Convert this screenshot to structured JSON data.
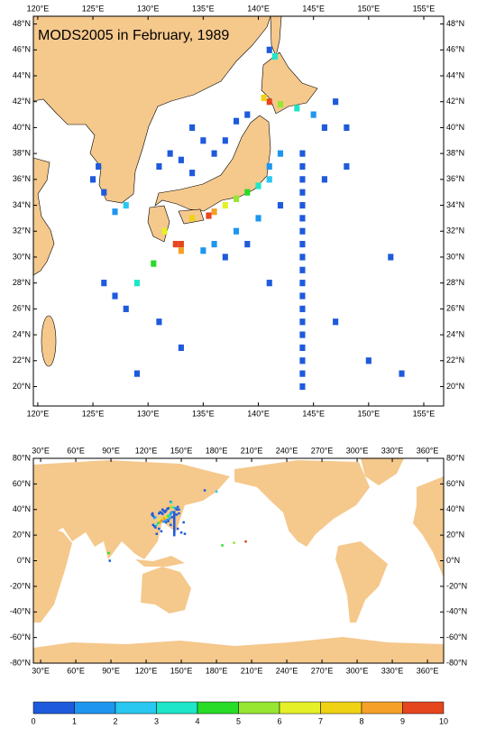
{
  "title": "MODS2005 in February, 1989",
  "top_map": {
    "lonlim": [
      119.6,
      156.8
    ],
    "latlim": [
      18.5,
      48.6
    ],
    "lon_ticks": [
      {
        "value": 120,
        "label": "120°E"
      },
      {
        "value": 125,
        "label": "125°E"
      },
      {
        "value": 130,
        "label": "130°E"
      },
      {
        "value": 135,
        "label": "135°E"
      },
      {
        "value": 140,
        "label": "140°E"
      },
      {
        "value": 145,
        "label": "145°E"
      },
      {
        "value": 150,
        "label": "150°E"
      },
      {
        "value": 155,
        "label": "155°E"
      }
    ],
    "lat_ticks": [
      {
        "value": 20,
        "label": "20°N"
      },
      {
        "value": 22,
        "label": "22°N"
      },
      {
        "value": 24,
        "label": "24°N"
      },
      {
        "value": 26,
        "label": "26°N"
      },
      {
        "value": 28,
        "label": "28°N"
      },
      {
        "value": 30,
        "label": "30°N"
      },
      {
        "value": 32,
        "label": "32°N"
      },
      {
        "value": 34,
        "label": "34°N"
      },
      {
        "value": 36,
        "label": "36°N"
      },
      {
        "value": 38,
        "label": "38°N"
      },
      {
        "value": 40,
        "label": "40°N"
      },
      {
        "value": 42,
        "label": "42°N"
      },
      {
        "value": 44,
        "label": "44°N"
      },
      {
        "value": 46,
        "label": "46°N"
      },
      {
        "value": 48,
        "label": "48°N"
      }
    ]
  },
  "bottom_map": {
    "lonlim": [
      23.8,
      373.8
    ],
    "latlim": [
      -80,
      80
    ],
    "lon_ticks": [
      {
        "value": 30,
        "label": "30°E"
      },
      {
        "value": 60,
        "label": "60°E"
      },
      {
        "value": 90,
        "label": "90°E"
      },
      {
        "value": 120,
        "label": "120°E"
      },
      {
        "value": 150,
        "label": "150°E"
      },
      {
        "value": 180,
        "label": "180°E"
      },
      {
        "value": 210,
        "label": "210°E"
      },
      {
        "value": 240,
        "label": "240°E"
      },
      {
        "value": 270,
        "label": "270°E"
      },
      {
        "value": 300,
        "label": "300°E"
      },
      {
        "value": 330,
        "label": "330°E"
      },
      {
        "value": 360,
        "label": "360°E"
      }
    ],
    "lat_ticks": [
      {
        "value": -80,
        "label": "-80°N"
      },
      {
        "value": -60,
        "label": "-60°N"
      },
      {
        "value": -40,
        "label": "-40°N"
      },
      {
        "value": -20,
        "label": "-20°N"
      },
      {
        "value": 0,
        "label": "0°N"
      },
      {
        "value": 20,
        "label": "20°N"
      },
      {
        "value": 40,
        "label": "40°N"
      },
      {
        "value": 60,
        "label": "60°N"
      },
      {
        "value": 80,
        "label": "80°N"
      }
    ]
  },
  "colorbar": {
    "bounds": [
      0,
      1,
      2,
      3,
      4,
      5,
      6,
      7,
      8,
      9,
      10
    ],
    "colors": [
      "#1e5adc",
      "#1e96f0",
      "#28c8f0",
      "#1ee6c8",
      "#28dc28",
      "#96e632",
      "#e6f028",
      "#f0d214",
      "#f5a028",
      "#e6461e"
    ]
  },
  "cells": {
    "lon": [
      144,
      144,
      144,
      144,
      144,
      144,
      144,
      144,
      144,
      144,
      144,
      144,
      144,
      144,
      144,
      144,
      144,
      144,
      144,
      135.5,
      136,
      134,
      137,
      138,
      139,
      140,
      133,
      132.5,
      133,
      131.5,
      130.5,
      129,
      141,
      141,
      142,
      141,
      140.5,
      142,
      143.5,
      145,
      128,
      127,
      126,
      125,
      125.5,
      131,
      132,
      133,
      134,
      135,
      137,
      138,
      139,
      136,
      134,
      146,
      147,
      148,
      138,
      139,
      137,
      136,
      135,
      140,
      142,
      146,
      148,
      126,
      127,
      128,
      131,
      133,
      141,
      150,
      153,
      147,
      129,
      152,
      141,
      141.5,
      185,
      195,
      205,
      170,
      180,
      88,
      89
    ],
    "lat": [
      20,
      21,
      22,
      23,
      24,
      25,
      26,
      27,
      28,
      29,
      30,
      31,
      32,
      33,
      34,
      35,
      36,
      37,
      38,
      33.2,
      33.5,
      33,
      34,
      34.5,
      35,
      35.5,
      31,
      31,
      30.5,
      32,
      29.5,
      28,
      36,
      37,
      38,
      42,
      42.3,
      41.8,
      41.5,
      41,
      34,
      33.5,
      35,
      36,
      37,
      37,
      38,
      37.5,
      36.5,
      39,
      39,
      40.5,
      41,
      38,
      40,
      40,
      42,
      40,
      32,
      31,
      30,
      31,
      30.5,
      33,
      34,
      36,
      37,
      28,
      27,
      26,
      25,
      23,
      28,
      22,
      21,
      25,
      21,
      30,
      46,
      45.5,
      12,
      14,
      15,
      55,
      54,
      6,
      0
    ],
    "value": [
      0.5,
      0.5,
      0.5,
      0.5,
      0.5,
      0.5,
      0.5,
      0.5,
      0.5,
      0.5,
      0.5,
      0.5,
      0.5,
      0.5,
      0.5,
      0.5,
      0.5,
      0.5,
      0.5,
      9.5,
      8.6,
      7.5,
      6.5,
      5.5,
      4.5,
      3.5,
      9.2,
      9.5,
      8.3,
      6.2,
      4.3,
      3.2,
      2.5,
      1.5,
      1.2,
      9.4,
      7.6,
      5.4,
      3.6,
      1.5,
      2.1,
      1.3,
      0.8,
      0.6,
      0.7,
      0.6,
      0.5,
      0.6,
      0.7,
      0.5,
      0.6,
      0.5,
      0.5,
      0.5,
      0.5,
      0.6,
      0.7,
      0.5,
      1.4,
      0.8,
      0.9,
      1.8,
      1.1,
      1.6,
      0.9,
      0.5,
      0.5,
      0.6,
      0.7,
      0.5,
      0.6,
      0.5,
      0.5,
      0.5,
      0.5,
      0.6,
      0.5,
      0.5,
      0.5,
      3.2,
      4.5,
      5.5,
      9.1,
      0.5,
      2.3,
      4.2,
      0.8
    ]
  }
}
